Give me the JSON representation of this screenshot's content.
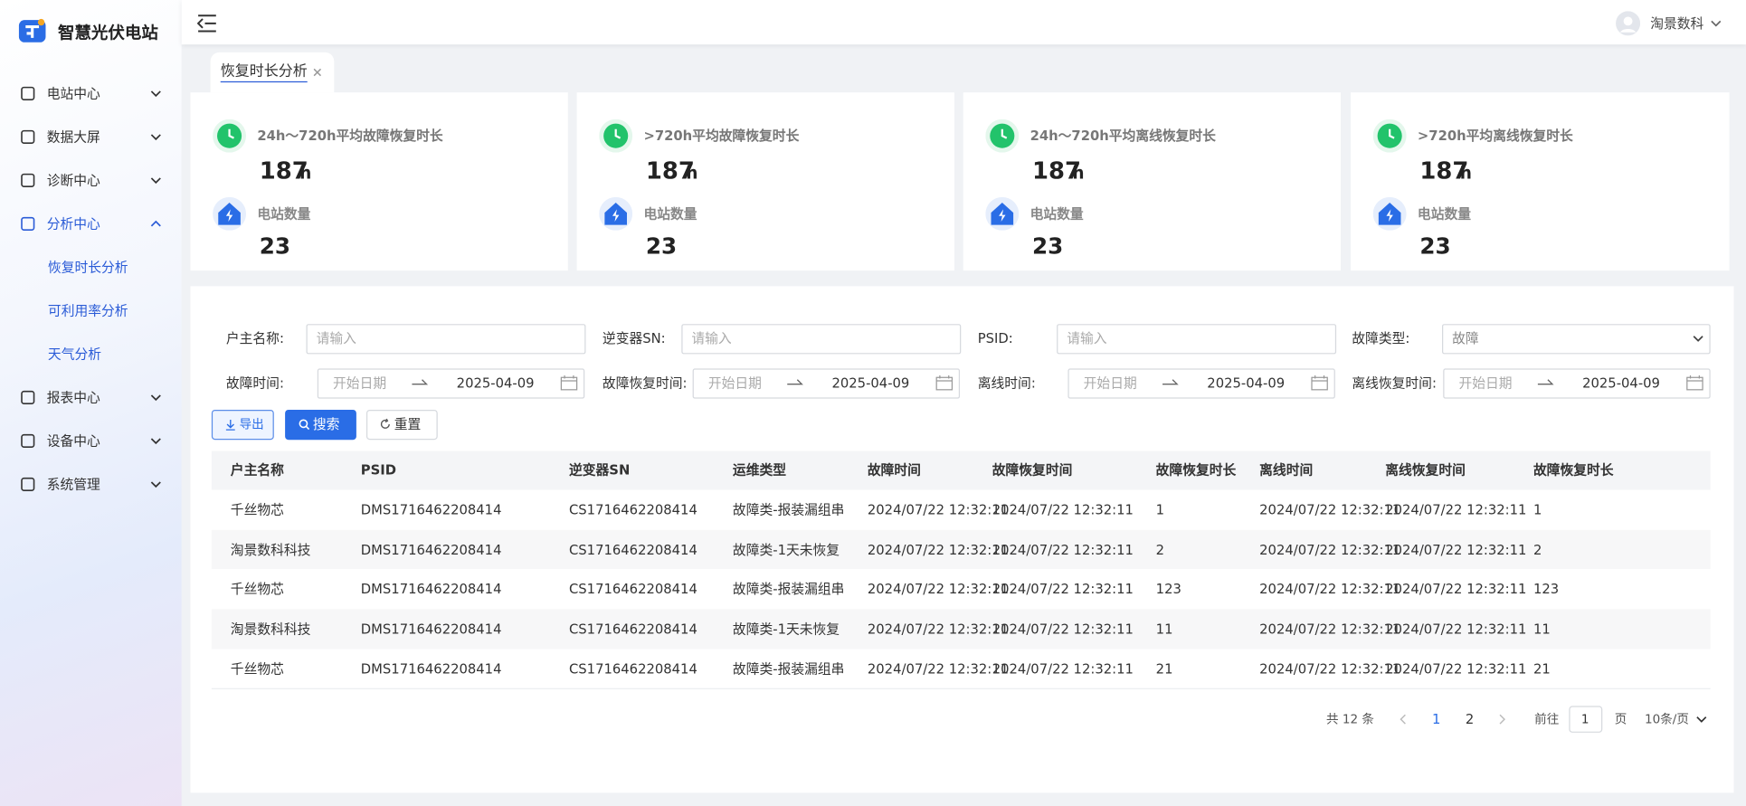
{
  "sidebar": {
    "brand": "智慧光伏电站",
    "menu": [
      {
        "label": "电站中心"
      },
      {
        "label": "数据大屏"
      },
      {
        "label": "诊断中心"
      },
      {
        "label": "分析中心",
        "children": [
          "恢复时长分析",
          "可利用率分析",
          "天气分析"
        ]
      },
      {
        "label": "报表中心"
      },
      {
        "label": "设备中心"
      },
      {
        "label": "系统管理"
      }
    ]
  },
  "header": {
    "user": "淘景数科"
  },
  "tabs": [
    "恢复时长分析"
  ],
  "cards": [
    {
      "title": "24h～720h平均故障恢复时长",
      "value": 187,
      "unit": "h",
      "count_label": "电站数量",
      "count": 23
    },
    {
      "title": ">720h平均故障恢复时长",
      "value": 187,
      "unit": "h",
      "count_label": "电站数量",
      "count": 23
    },
    {
      "title": "24h～720h平均离线恢复时长",
      "value": 187,
      "unit": "h",
      "count_label": "电站数量",
      "count": 23
    },
    {
      "title": ">720h平均离线恢复时长",
      "value": 187,
      "unit": "h",
      "count_label": "电站数量",
      "count": 23
    }
  ],
  "filters": {
    "row1": [
      {
        "label": "户主名称:",
        "placeholder": "请输入"
      },
      {
        "label": "逆变器SN:",
        "placeholder": "请输入"
      },
      {
        "label": "PSID:",
        "placeholder": "请输入"
      },
      {
        "label": "故障类型:",
        "value": "故障"
      }
    ],
    "row2": [
      {
        "label": "故障时间:",
        "start": "开始日期",
        "end": "2025-04-09"
      },
      {
        "label": "故障恢复时间:",
        "start": "开始日期",
        "end": "2025-04-09"
      },
      {
        "label": "离线时间:",
        "start": "开始日期",
        "end": "2025-04-09"
      },
      {
        "label": "离线恢复时间:",
        "start": "开始日期",
        "end": "2025-04-09"
      }
    ]
  },
  "buttons": [
    "导出",
    "搜索",
    "重置"
  ],
  "table": {
    "columns": [
      "户主名称",
      "PSID",
      "逆变器SN",
      "运维类型",
      "故障时间",
      "故障恢复时间",
      "故障恢复时长",
      "离线时间",
      "离线恢复时间",
      "故障恢复时长"
    ],
    "rows": [
      [
        "千丝物芯",
        "DMS1716462208414",
        "CS1716462208414",
        "故障类-报装漏组串",
        "2024/07/22 12:32:11",
        "2024/07/22 12:32:11",
        1,
        "2024/07/22 12:32:11",
        "2024/07/22 12:32:11",
        1
      ],
      [
        "淘景数科科技",
        "DMS1716462208414",
        "CS1716462208414",
        "故障类-1天未恢复",
        "2024/07/22 12:32:11",
        "2024/07/22 12:32:11",
        2,
        "2024/07/22 12:32:11",
        "2024/07/22 12:32:11",
        2
      ],
      [
        "千丝物芯",
        "DMS1716462208414",
        "CS1716462208414",
        "故障类-报装漏组串",
        "2024/07/22 12:32:11",
        "2024/07/22 12:32:11",
        123,
        "2024/07/22 12:32:11",
        "2024/07/22 12:32:11",
        123
      ],
      [
        "淘景数科科技",
        "DMS1716462208414",
        "CS1716462208414",
        "故障类-1天未恢复",
        "2024/07/22 12:32:11",
        "2024/07/22 12:32:11",
        11,
        "2024/07/22 12:32:11",
        "2024/07/22 12:32:11",
        11
      ],
      [
        "千丝物芯",
        "DMS1716462208414",
        "CS1716462208414",
        "故障类-报装漏组串",
        "2024/07/22 12:32:11",
        "2024/07/22 12:32:11",
        21,
        "2024/07/22 12:32:11",
        "2024/07/22 12:32:11",
        21
      ]
    ]
  },
  "pagination": {
    "total": "共 12 条",
    "pages": [
      1,
      2
    ],
    "goto": "前往",
    "page_input": "1",
    "page_unit": "页",
    "page_size": "10条/页"
  }
}
